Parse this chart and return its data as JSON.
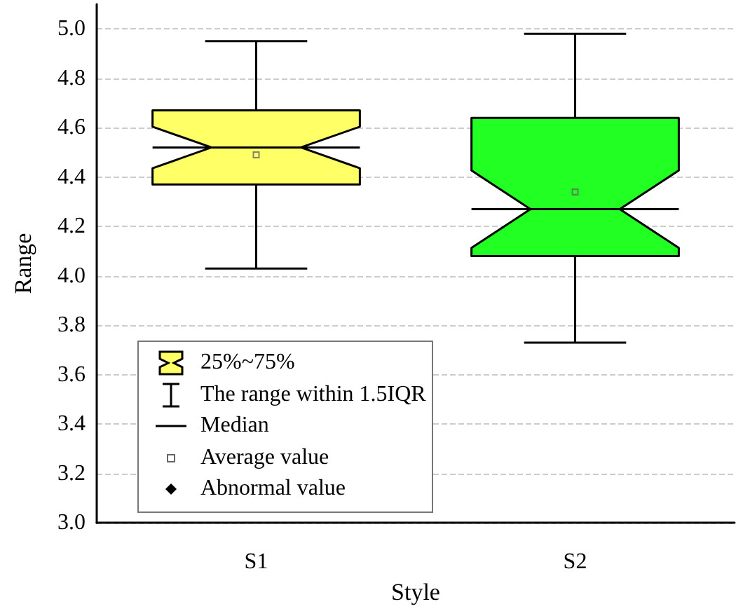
{
  "chart_data": {
    "type": "box",
    "xlabel": "Style",
    "ylabel": "Range",
    "categories": [
      "S1",
      "S2"
    ],
    "boxes": [
      {
        "low": 4.03,
        "q1": 4.37,
        "median": 4.52,
        "q3": 4.67,
        "high": 4.95,
        "mean": 4.49
      },
      {
        "low": 3.73,
        "q1": 4.08,
        "median": 4.27,
        "q3": 4.64,
        "high": 4.98,
        "mean": 4.34
      }
    ],
    "colors": [
      "#ffff66",
      "#22ff22"
    ],
    "ylim": [
      3.0,
      5.1
    ],
    "yticks": [
      {
        "value": 3,
        "label": "3.0"
      },
      {
        "value": 3.2,
        "label": "3.2"
      },
      {
        "value": 3.4,
        "label": "3.4"
      },
      {
        "value": 3.6,
        "label": "3.6"
      },
      {
        "value": 3.8,
        "label": "3.8"
      },
      {
        "value": 4,
        "label": "4.0"
      },
      {
        "value": 4.2,
        "label": "4.2"
      },
      {
        "value": 4.4,
        "label": "4.4"
      },
      {
        "value": 4.6,
        "label": "4.6"
      },
      {
        "value": 4.8,
        "label": "4.8"
      },
      {
        "value": 5,
        "label": "5.0"
      }
    ],
    "grid": "y",
    "annotations": [
      "25%~75%",
      "The range within 1.5IQR",
      "Median",
      "Average value",
      "Abnormal value"
    ]
  }
}
